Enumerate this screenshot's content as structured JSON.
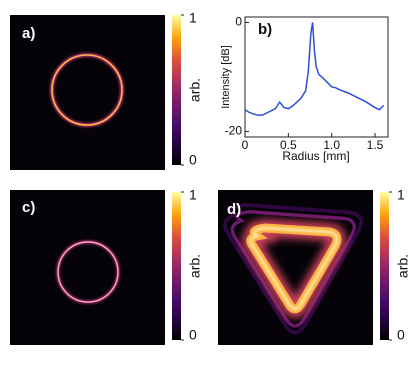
{
  "images": [
    {
      "label": "a)",
      "colorbar": {
        "clim": [
          0,
          1
        ],
        "ticks": [
          0,
          1
        ],
        "label": "arb."
      }
    },
    {
      "label": "c)",
      "colorbar": {
        "clim": [
          0,
          1
        ],
        "ticks": [
          0,
          1
        ],
        "label": "arb."
      }
    },
    {
      "label": "d)",
      "colorbar": {
        "clim": [
          0,
          1
        ],
        "ticks": [
          0,
          1
        ],
        "label": "arb."
      }
    }
  ],
  "chart_data": {
    "type": "line",
    "label": "b)",
    "x_label": "Radius [mm]",
    "y_label": "Intensity [dB]",
    "x": [
      0,
      0.05,
      0.1,
      0.15,
      0.2,
      0.25,
      0.3,
      0.35,
      0.4,
      0.45,
      0.5,
      0.55,
      0.6,
      0.65,
      0.7,
      0.73,
      0.76,
      0.78,
      0.8,
      0.82,
      0.85,
      0.9,
      0.95,
      1.0,
      1.05,
      1.1,
      1.2,
      1.3,
      1.4,
      1.5,
      1.55,
      1.6
    ],
    "series": [
      {
        "color": "#2b4fd8",
        "values": [
          -16,
          -16.5,
          -16.8,
          -17,
          -17,
          -16.6,
          -16.2,
          -15.8,
          -14.6,
          -15.6,
          -15.8,
          -15.3,
          -14.6,
          -13.8,
          -12.5,
          -9,
          -2,
          0,
          -5,
          -8,
          -9.5,
          -10.2,
          -11,
          -11.8,
          -12,
          -12.4,
          -13,
          -13.8,
          -14.6,
          -15.6,
          -16,
          -15.2
        ]
      }
    ],
    "xlim": [
      0,
      1.65
    ],
    "ylim": [
      -21,
      1
    ],
    "xticks": [
      0,
      0.5,
      {
        "value": 1,
        "label": "1.0"
      },
      1.5
    ],
    "yticks": [
      -20,
      0
    ]
  }
}
